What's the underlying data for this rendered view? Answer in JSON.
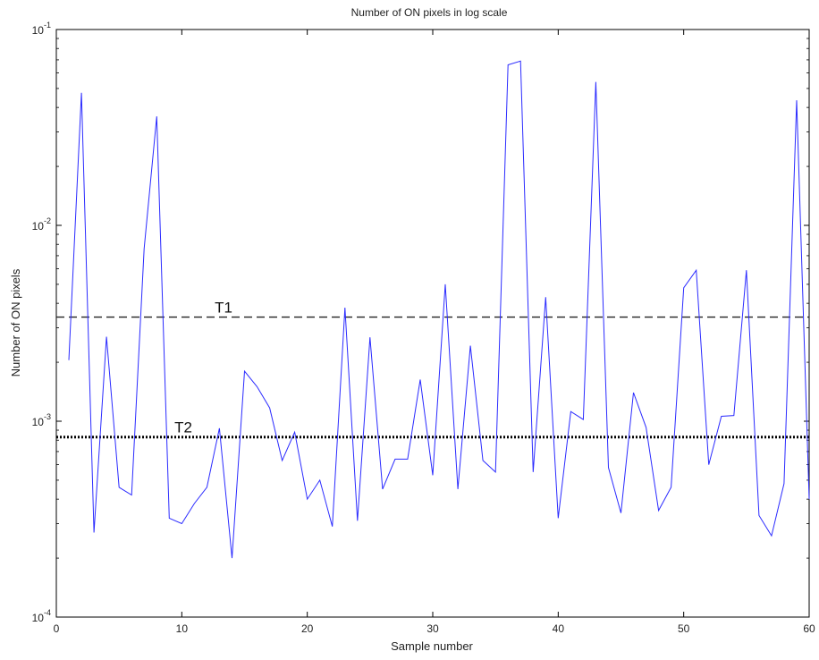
{
  "chart_data": {
    "type": "line",
    "title": "Number of ON pixels in log scale",
    "xlabel": "Sample number",
    "ylabel": "Number of ON pixels",
    "xlim": [
      0,
      60
    ],
    "ylim": [
      0.0001,
      0.1
    ],
    "yscale": "log",
    "x_ticks": [
      0,
      10,
      20,
      30,
      40,
      50,
      60
    ],
    "x_tick_labels": [
      "0",
      "10",
      "20",
      "30",
      "40",
      "50",
      "60"
    ],
    "y_ticks": [
      0.0001,
      0.001,
      0.01,
      0.1
    ],
    "y_tick_labels": [
      {
        "base": "10",
        "exp": "-4"
      },
      {
        "base": "10",
        "exp": "-3"
      },
      {
        "base": "10",
        "exp": "-2"
      },
      {
        "base": "10",
        "exp": "-1"
      }
    ],
    "series": [
      {
        "color": "#2b2bff",
        "x": [
          1,
          2,
          3,
          4,
          5,
          6,
          7,
          8,
          9,
          10,
          11,
          12,
          13,
          14,
          15,
          16,
          17,
          18,
          19,
          20,
          21,
          22,
          23,
          24,
          25,
          26,
          27,
          28,
          29,
          30,
          31,
          32,
          33,
          34,
          35,
          36,
          37,
          38,
          39,
          40,
          41,
          42,
          43,
          44,
          45,
          46,
          47,
          48,
          49,
          50,
          51,
          52,
          53,
          54,
          55,
          56,
          57,
          58,
          59,
          60
        ],
        "y": [
          0.00205,
          0.0475,
          0.00027,
          0.0027,
          0.00046,
          0.00042,
          0.0076,
          0.036,
          0.00032,
          0.0003,
          0.00038,
          0.00046,
          0.00092,
          0.0002,
          0.0018,
          0.0015,
          0.00117,
          0.00063,
          0.00088,
          0.0004,
          0.0005,
          0.00029,
          0.0038,
          0.00031,
          0.00268,
          0.00045,
          0.00064,
          0.00064,
          0.00163,
          0.00053,
          0.005,
          0.00045,
          0.00243,
          0.00063,
          0.00055,
          0.066,
          0.069,
          0.00055,
          0.0043,
          0.00032,
          0.00112,
          0.00102,
          0.054,
          0.00058,
          0.00034,
          0.0014,
          0.00093,
          0.00035,
          0.00046,
          0.0048,
          0.0059,
          0.0006,
          0.00106,
          0.00107,
          0.0059,
          0.00033,
          0.00026,
          0.00048,
          0.0435,
          0.0004
        ]
      }
    ],
    "reference_lines": [
      {
        "label": "T1",
        "y": 0.0034,
        "style": "dashed",
        "color": "#222222"
      },
      {
        "label": "T2",
        "y": 0.00083,
        "style": "dotted",
        "color": "#000000"
      }
    ],
    "grid": false,
    "legend": "none"
  }
}
